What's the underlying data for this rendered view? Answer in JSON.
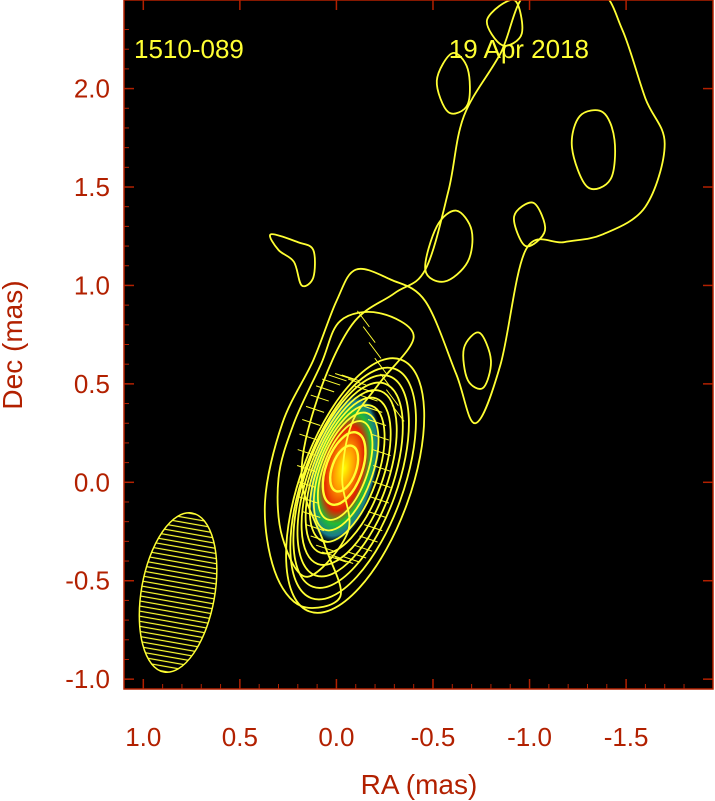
{
  "chart_data": {
    "type": "contour",
    "source_name": "1510-089",
    "epoch": "19 Apr 2018",
    "xlabel": "RA (mas)",
    "ylabel": "Dec (mas)",
    "xlim": [
      1.1,
      -1.95
    ],
    "ylim": [
      -1.05,
      2.45
    ],
    "x_ticks": [
      1.0,
      0.5,
      0.0,
      -0.5,
      -1.0,
      -1.5
    ],
    "x_tick_labels": [
      "1.0",
      "0.5",
      "0.0",
      "-0.5",
      "-1.0",
      "-1.5"
    ],
    "y_ticks": [
      2.0,
      1.5,
      1.0,
      0.5,
      0.0,
      -0.5,
      -1.0
    ],
    "y_tick_labels": [
      "2.0",
      "1.5",
      "1.0",
      "0.5",
      "0.0",
      "-0.5",
      "-1.0"
    ],
    "grid": false,
    "core": {
      "ra": -0.04,
      "dec": 0.07
    },
    "beam": {
      "ra": 0.82,
      "dec": -0.56,
      "major_mas": 0.41,
      "minor_mas": 0.19,
      "pa_deg": 10
    },
    "colors": {
      "background": "#000000",
      "contour": "#ffff33",
      "text_annotation": "#ffff33",
      "axis_text": "#b22000",
      "frame": "#b22000"
    }
  }
}
